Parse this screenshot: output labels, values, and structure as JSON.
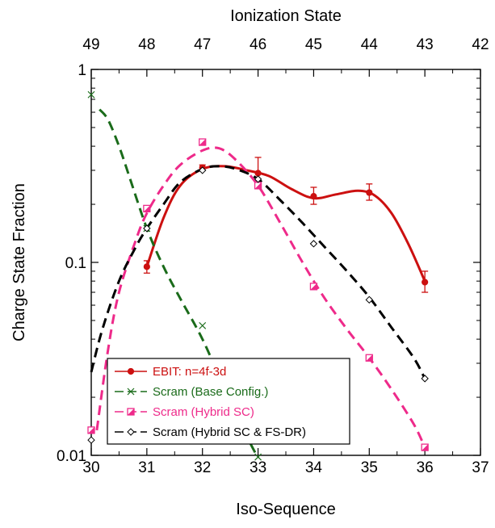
{
  "chart_data": {
    "type": "line",
    "xlabel": "Iso-Sequence",
    "ylabel": "Charge State Fraction",
    "x2label": "Ionization State",
    "yscale": "log",
    "xlim": [
      30,
      37
    ],
    "ylim": [
      0.01,
      1
    ],
    "x_ticks": [
      30,
      31,
      32,
      33,
      34,
      35,
      36,
      37
    ],
    "x_tick_labels": [
      "30",
      "31",
      "32",
      "33",
      "34",
      "35",
      "36",
      "37"
    ],
    "x2_ticks": [
      30,
      31,
      32,
      33,
      34,
      35,
      36,
      37
    ],
    "x2_tick_labels": [
      "49",
      "48",
      "47",
      "46",
      "45",
      "44",
      "43",
      "42"
    ],
    "y_ticks": [
      0.01,
      0.1,
      1
    ],
    "y_tick_labels": [
      "0.01",
      "0.1",
      "1"
    ],
    "legend_position": "bottom-left",
    "series": [
      {
        "name": "EBIT: n=4f-3d",
        "color": "#cc1010",
        "marker": "filled-circle",
        "line": "solid",
        "x": [
          31,
          32,
          33,
          34,
          35,
          36
        ],
        "y": [
          0.095,
          0.31,
          0.29,
          0.22,
          0.23,
          0.079
        ],
        "y_err_low": [
          0.088,
          0.3,
          0.25,
          0.2,
          0.21,
          0.07
        ],
        "y_err_high": [
          0.102,
          0.32,
          0.35,
          0.245,
          0.255,
          0.09
        ],
        "curve_x": [
          31,
          31.3,
          31.6,
          32,
          32.4,
          32.8,
          33.2,
          33.6,
          34,
          34.4,
          34.8,
          35.1,
          35.4,
          35.7,
          36
        ],
        "curve_y": [
          0.095,
          0.17,
          0.25,
          0.305,
          0.315,
          0.3,
          0.28,
          0.24,
          0.215,
          0.225,
          0.235,
          0.222,
          0.18,
          0.125,
          0.08
        ]
      },
      {
        "name": "Scram (Base Config.)",
        "color": "#1a6b1a",
        "marker": "x",
        "line": "dashed",
        "x": [
          30,
          31,
          32,
          33
        ],
        "y": [
          0.74,
          0.15,
          0.047,
          0.0098
        ],
        "curve_x": [
          30.15,
          30.3,
          30.5,
          30.7,
          31,
          31.3,
          31.6,
          32,
          32.4,
          32.8,
          33
        ],
        "curve_y": [
          0.62,
          0.55,
          0.4,
          0.27,
          0.15,
          0.095,
          0.065,
          0.04,
          0.022,
          0.0125,
          0.0097
        ]
      },
      {
        "name": "Scram (Hybrid SC)",
        "color": "#ee2a8a",
        "marker": "half-filled-square",
        "line": "dashed",
        "x": [
          30,
          31,
          32,
          33,
          34,
          35,
          36
        ],
        "y": [
          0.0135,
          0.19,
          0.42,
          0.25,
          0.075,
          0.032,
          0.011
        ],
        "curve_x": [
          30.1,
          30.3,
          30.5,
          30.8,
          31,
          31.3,
          31.6,
          32,
          32.3,
          32.6,
          33,
          33.4,
          33.8,
          34.2,
          34.6,
          35,
          35.4,
          35.8,
          36
        ],
        "curve_y": [
          0.0135,
          0.035,
          0.07,
          0.13,
          0.18,
          0.25,
          0.32,
          0.38,
          0.39,
          0.34,
          0.25,
          0.16,
          0.1,
          0.065,
          0.045,
          0.032,
          0.022,
          0.0145,
          0.011
        ]
      },
      {
        "name": "Scram (Hybrid SC & FS-DR)",
        "color": "#000000",
        "marker": "open-diamond",
        "line": "dashed",
        "x": [
          30,
          31,
          32,
          33,
          34,
          35,
          36
        ],
        "y": [
          0.012,
          0.15,
          0.3,
          0.27,
          0.125,
          0.064,
          0.025
        ],
        "curve_x": [
          30,
          30.2,
          30.5,
          30.8,
          31,
          31.3,
          31.6,
          32,
          32.3,
          32.6,
          33,
          33.4,
          33.8,
          34.2,
          34.6,
          35,
          35.4,
          35.8,
          36
        ],
        "curve_y": [
          0.027,
          0.045,
          0.08,
          0.12,
          0.15,
          0.2,
          0.26,
          0.305,
          0.315,
          0.305,
          0.27,
          0.21,
          0.16,
          0.12,
          0.09,
          0.066,
          0.046,
          0.032,
          0.025
        ]
      }
    ]
  }
}
